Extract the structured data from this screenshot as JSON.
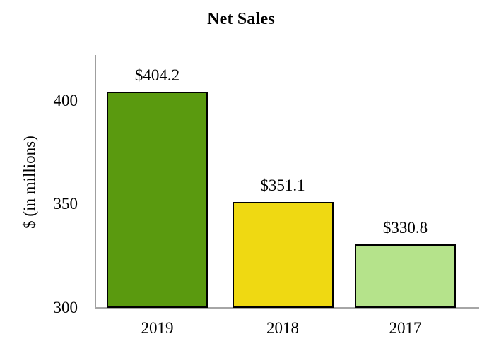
{
  "chart_data": {
    "type": "bar",
    "title": "Net Sales",
    "xlabel": "",
    "ylabel": "$ (in millions)",
    "categories": [
      "2019",
      "2018",
      "2017"
    ],
    "values": [
      404.2,
      351.1,
      330.8
    ],
    "value_labels": [
      "$404.2",
      "$351.1",
      "$330.8"
    ],
    "yticks": [
      400,
      350,
      300
    ],
    "ylim": [
      300,
      422
    ],
    "grid": false,
    "legend": "none",
    "bar_colors": [
      "#5a9a0f",
      "#efd912",
      "#b5e38b"
    ],
    "bar_border_color": "#000000",
    "axis_color": "#a0a0a0",
    "text_color": "#000000",
    "background_color": "#ffffff"
  }
}
